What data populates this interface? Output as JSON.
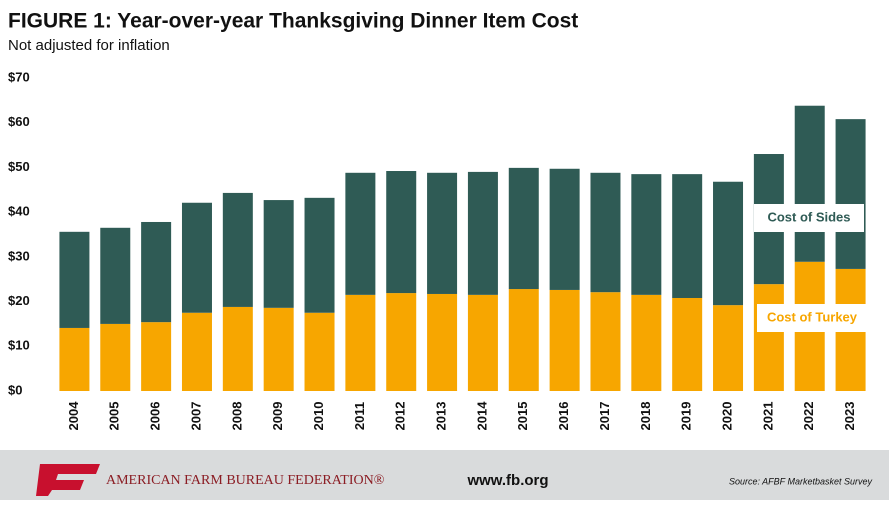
{
  "chart_data": {
    "type": "stacked-bar",
    "title": "FIGURE 1: Year-over-year Thanksgiving Dinner Item Cost",
    "subtitle": "Not adjusted for inflation",
    "categories": [
      "2004",
      "2005",
      "2006",
      "2007",
      "2008",
      "2009",
      "2010",
      "2011",
      "2012",
      "2013",
      "2014",
      "2015",
      "2016",
      "2017",
      "2018",
      "2019",
      "2020",
      "2021",
      "2022",
      "2023"
    ],
    "series": [
      {
        "name": "Cost of Turkey",
        "color": "#f7a600",
        "values": [
          14.1,
          15.0,
          15.4,
          17.5,
          18.8,
          18.6,
          17.5,
          21.5,
          21.9,
          21.7,
          21.5,
          22.8,
          22.6,
          22.1,
          21.5,
          20.8,
          19.2,
          23.9,
          28.9,
          27.3
        ]
      },
      {
        "name": "Cost of Sides",
        "color": "#2f5b55",
        "values": [
          21.5,
          21.5,
          22.4,
          24.6,
          25.5,
          24.1,
          25.7,
          27.3,
          27.3,
          27.1,
          27.5,
          27.1,
          27.1,
          26.7,
          27.0,
          27.7,
          27.6,
          29.1,
          34.9,
          33.5
        ]
      }
    ],
    "ylim": [
      0,
      70
    ],
    "yticks": [
      {
        "value": 0,
        "label": "$0"
      },
      {
        "value": 10,
        "label": "$10"
      },
      {
        "value": 20,
        "label": "$20"
      },
      {
        "value": 30,
        "label": "$30"
      },
      {
        "value": 40,
        "label": "$40"
      },
      {
        "value": 50,
        "label": "$50"
      },
      {
        "value": 60,
        "label": "$60"
      },
      {
        "value": 70,
        "label": "$70"
      }
    ],
    "grid": false
  },
  "footer": {
    "organization": "AMERICAN FARM BUREAU FEDERATION®",
    "website": "www.fb.org",
    "source": "Source: AFBF Marketbasket Survey"
  }
}
